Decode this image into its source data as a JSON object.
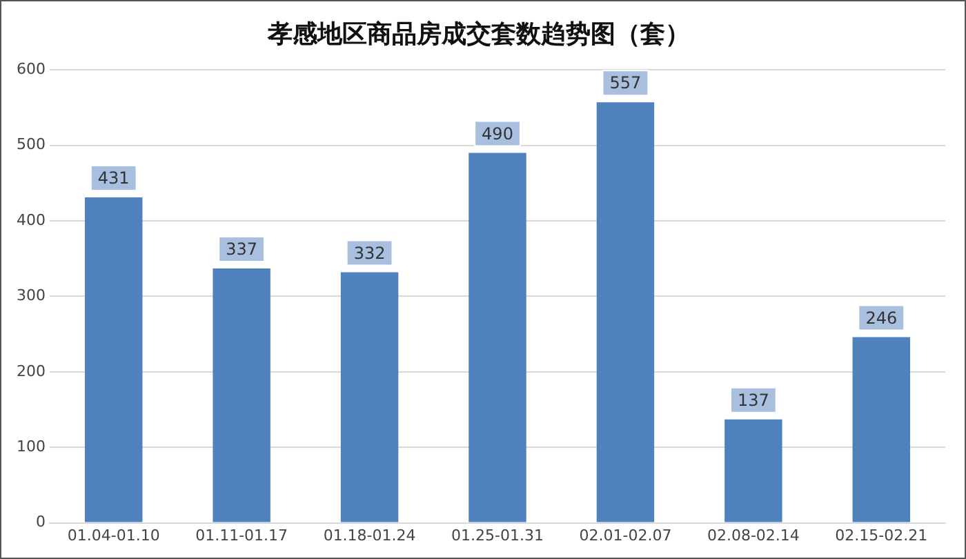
{
  "chart_data": {
    "type": "bar",
    "title": "孝感地区商品房成交套数趋势图（套）",
    "categories": [
      "01.04-01.10",
      "01.11-01.17",
      "01.18-01.24",
      "01.25-01.31",
      "02.01-02.07",
      "02.08-02.14",
      "02.15-02.21"
    ],
    "values": [
      431,
      337,
      332,
      490,
      557,
      137,
      246
    ],
    "color": "#4f81bd",
    "ylim": [
      0,
      600
    ],
    "yticks": [
      0,
      100,
      200,
      300,
      400,
      500,
      600
    ],
    "grid": "y",
    "legend": false,
    "data_labels": true
  }
}
